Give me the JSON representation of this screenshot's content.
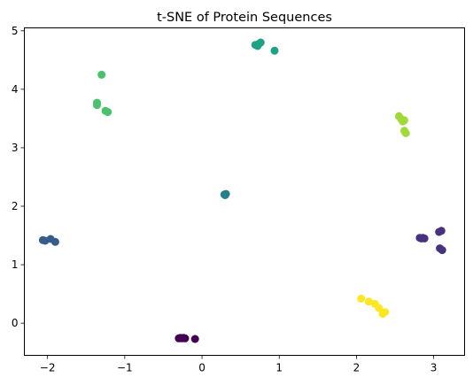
{
  "chart_data": {
    "type": "scatter",
    "title": "t-SNE of Protein Sequences",
    "xlabel": "",
    "ylabel": "",
    "xlim": [
      -2.3,
      3.4
    ],
    "ylim": [
      -0.55,
      5.05
    ],
    "xticks": [
      -2,
      -1,
      0,
      1,
      2,
      3
    ],
    "yticks": [
      0,
      1,
      2,
      3,
      4,
      5
    ],
    "grid": false,
    "legend": "none",
    "colormap": "viridis",
    "clusters": [
      {
        "color": "#440154",
        "points": [
          [
            -0.3,
            -0.26
          ],
          [
            -0.28,
            -0.25
          ],
          [
            -0.26,
            -0.26
          ],
          [
            -0.24,
            -0.25
          ],
          [
            -0.22,
            -0.26
          ],
          [
            -0.09,
            -0.27
          ]
        ]
      },
      {
        "color": "#46327e",
        "points": [
          [
            2.82,
            1.46
          ],
          [
            2.84,
            1.45
          ],
          [
            2.86,
            1.46
          ],
          [
            2.88,
            1.45
          ],
          [
            3.07,
            1.56
          ],
          [
            3.1,
            1.58
          ],
          [
            3.08,
            1.28
          ],
          [
            3.11,
            1.25
          ]
        ]
      },
      {
        "color": "#365c8d",
        "points": [
          [
            -2.06,
            1.42
          ],
          [
            -2.03,
            1.41
          ],
          [
            -1.96,
            1.44
          ],
          [
            -1.9,
            1.39
          ]
        ]
      },
      {
        "color": "#277f8e",
        "points": [
          [
            0.29,
            2.2
          ],
          [
            0.31,
            2.21
          ],
          [
            0.3,
            2.19
          ]
        ]
      },
      {
        "color": "#1fa187",
        "points": [
          [
            0.69,
            4.76
          ],
          [
            0.72,
            4.74
          ],
          [
            0.74,
            4.78
          ],
          [
            0.76,
            4.8
          ],
          [
            0.94,
            4.66
          ]
        ]
      },
      {
        "color": "#4ac16d",
        "points": [
          [
            -1.3,
            4.25
          ],
          [
            -1.36,
            3.77
          ],
          [
            -1.36,
            3.73
          ],
          [
            -1.25,
            3.63
          ],
          [
            -1.22,
            3.61
          ]
        ]
      },
      {
        "color": "#a0da39",
        "points": [
          [
            2.55,
            3.54
          ],
          [
            2.58,
            3.49
          ],
          [
            2.6,
            3.45
          ],
          [
            2.62,
            3.47
          ],
          [
            2.62,
            3.29
          ],
          [
            2.64,
            3.25
          ]
        ]
      },
      {
        "color": "#fde725",
        "points": [
          [
            2.06,
            0.42
          ],
          [
            2.16,
            0.37
          ],
          [
            2.24,
            0.33
          ],
          [
            2.29,
            0.26
          ],
          [
            2.34,
            0.16
          ],
          [
            2.37,
            0.19
          ]
        ]
      }
    ]
  }
}
